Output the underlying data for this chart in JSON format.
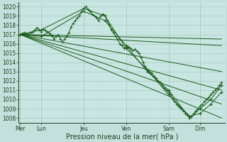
{
  "background_color": "#c4e0dc",
  "plot_bg_color": "#cce8e4",
  "grid_major_color": "#a8c8c4",
  "grid_minor_color": "#b8d8d4",
  "line_color": "#1a5c1a",
  "ylim": [
    1007.5,
    1020.5
  ],
  "ylabel_values": [
    1008,
    1009,
    1010,
    1011,
    1012,
    1013,
    1014,
    1015,
    1016,
    1017,
    1018,
    1019,
    1020
  ],
  "xlabel": "Pression niveau de la mer( hPa )",
  "x_tick_labels": [
    "Mer",
    "Lun",
    "Jeu",
    "Ven",
    "Sam",
    "Dim"
  ],
  "x_tick_positions": [
    0,
    30,
    90,
    150,
    210,
    255
  ],
  "xlim": [
    -2,
    290
  ],
  "straight_lines": [
    {
      "x": [
        0,
        285
      ],
      "y": [
        1017.0,
        1008.0
      ]
    },
    {
      "x": [
        0,
        285
      ],
      "y": [
        1017.0,
        1009.5
      ]
    },
    {
      "x": [
        0,
        285
      ],
      "y": [
        1017.0,
        1011.0
      ]
    },
    {
      "x": [
        0,
        285
      ],
      "y": [
        1017.0,
        1013.0
      ]
    },
    {
      "x": [
        0,
        285
      ],
      "y": [
        1017.0,
        1015.8
      ]
    },
    {
      "x": [
        0,
        285
      ],
      "y": [
        1017.0,
        1016.5
      ]
    }
  ],
  "noisy_series": {
    "x": [
      0,
      3,
      6,
      9,
      12,
      15,
      18,
      21,
      24,
      27,
      30,
      33,
      36,
      39,
      42,
      45,
      48,
      51,
      54,
      57,
      60,
      63,
      66,
      69,
      72,
      75,
      78,
      81,
      84,
      87,
      90,
      93,
      96,
      99,
      102,
      105,
      108,
      111,
      114,
      117,
      120,
      123,
      126,
      129,
      132,
      135,
      138,
      141,
      144,
      147,
      150,
      153,
      156,
      159,
      162,
      165,
      168,
      171,
      174,
      177,
      180,
      183,
      186,
      189,
      192,
      195,
      198,
      201,
      204,
      207,
      210,
      213,
      216,
      219,
      222,
      225,
      228,
      231,
      234,
      237,
      240,
      243,
      246,
      249,
      252,
      255,
      258,
      261,
      264,
      267,
      270,
      273,
      276,
      279,
      282,
      285
    ],
    "y": [
      1017.0,
      1017.1,
      1017.2,
      1017.1,
      1017.0,
      1017.2,
      1017.3,
      1017.5,
      1017.7,
      1017.5,
      1017.3,
      1017.6,
      1017.4,
      1017.3,
      1017.1,
      1016.9,
      1016.5,
      1016.8,
      1017.0,
      1016.5,
      1016.2,
      1016.5,
      1016.8,
      1017.2,
      1017.8,
      1018.2,
      1018.5,
      1018.8,
      1019.0,
      1019.5,
      1019.8,
      1020.0,
      1019.7,
      1019.5,
      1019.2,
      1019.0,
      1018.8,
      1018.5,
      1019.0,
      1019.2,
      1019.0,
      1018.5,
      1018.0,
      1017.5,
      1017.2,
      1016.8,
      1016.5,
      1016.0,
      1015.8,
      1015.5,
      1015.6,
      1015.7,
      1015.5,
      1015.3,
      1015.4,
      1015.2,
      1015.0,
      1014.5,
      1014.0,
      1013.5,
      1013.2,
      1013.0,
      1012.8,
      1012.5,
      1012.3,
      1012.0,
      1011.8,
      1011.5,
      1011.2,
      1011.0,
      1010.8,
      1010.5,
      1010.0,
      1009.8,
      1009.5,
      1009.2,
      1009.0,
      1008.8,
      1008.5,
      1008.3,
      1008.0,
      1008.2,
      1008.5,
      1008.8,
      1009.0,
      1009.3,
      1009.5,
      1009.8,
      1010.0,
      1010.2,
      1010.5,
      1010.8,
      1011.0,
      1011.2,
      1011.5,
      1011.8
    ]
  },
  "marker_series_1": {
    "x": [
      0,
      30,
      90,
      120,
      150,
      180,
      210,
      240,
      255,
      270,
      285
    ],
    "y": [
      1017.0,
      1017.5,
      1019.8,
      1019.0,
      1015.5,
      1013.2,
      1010.5,
      1008.2,
      1008.5,
      1009.5,
      1010.8
    ]
  },
  "marker_series_2": {
    "x": [
      0,
      30,
      90,
      120,
      150,
      180,
      210,
      240,
      255,
      270,
      285
    ],
    "y": [
      1017.0,
      1016.8,
      1019.5,
      1018.5,
      1015.8,
      1013.0,
      1011.0,
      1008.0,
      1009.0,
      1010.0,
      1011.5
    ]
  }
}
